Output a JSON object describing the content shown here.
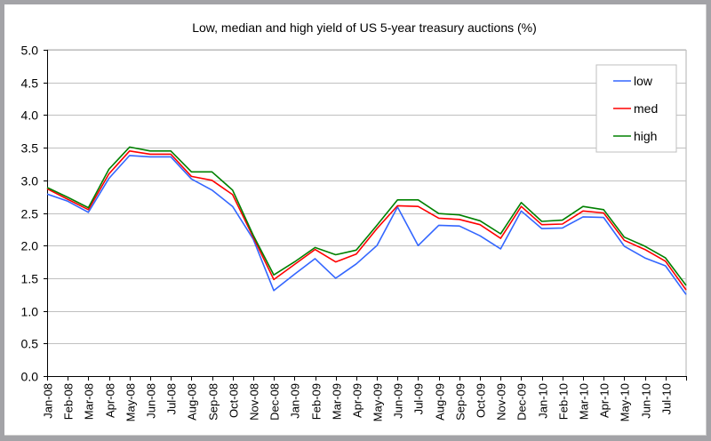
{
  "chart_data": {
    "type": "line",
    "title": "Low, median and high yield of US 5-year treasury auctions (%)",
    "xlabel": "",
    "ylabel": "",
    "ylim": [
      0,
      5
    ],
    "yticks": [
      "0.0",
      "0.5",
      "1.0",
      "1.5",
      "2.0",
      "2.5",
      "3.0",
      "3.5",
      "4.0",
      "4.5",
      "5.0"
    ],
    "ytick_values": [
      0,
      0.5,
      1,
      1.5,
      2,
      2.5,
      3,
      3.5,
      4,
      4.5,
      5
    ],
    "grid": true,
    "legend_position": "top-right",
    "categories": [
      "Jan-08",
      "Feb-08",
      "Mar-08",
      "Apr-08",
      "May-08",
      "Jun-08",
      "Jul-08",
      "Aug-08",
      "Sep-08",
      "Oct-08",
      "Nov-08",
      "Dec-08",
      "Jan-09",
      "Feb-09",
      "Mar-09",
      "Apr-09",
      "May-09",
      "Jun-09",
      "Jul-09",
      "Aug-09",
      "Sep-09",
      "Oct-09",
      "Nov-09",
      "Dec-09",
      "Jan-10",
      "Feb-10",
      "Mar-10",
      "Apr-10",
      "May-10",
      "Jun-10",
      "Jul-10",
      "Aug-10"
    ],
    "category_labels": [
      "Jan-08",
      "Feb-08",
      "Mar-08",
      "Apr-08",
      "May-08",
      "Jun-08",
      "Jul-08",
      "Aug-08",
      "Sep-08",
      "Oct-08",
      "Nov-08",
      "Dec-08",
      "Jan-09",
      "Feb-09",
      "Mar-09",
      "Apr-09",
      "May-09",
      "Jun-09",
      "Jul-09",
      "Aug-09",
      "Sep-09",
      "Oct-09",
      "Nov-09",
      "Dec-09",
      "Jan-10",
      "Feb-10",
      "Mar-10",
      "Apr-10",
      "May-10",
      "Jun-10",
      "Jul-10",
      ""
    ],
    "series": [
      {
        "name": "low",
        "color": "#3366ff",
        "values": [
          2.79,
          2.68,
          2.51,
          3.03,
          3.38,
          3.36,
          3.36,
          3.02,
          2.85,
          2.6,
          2.1,
          1.31,
          1.56,
          1.8,
          1.5,
          1.72,
          2.0,
          2.59,
          2.0,
          2.31,
          2.3,
          2.15,
          1.95,
          2.53,
          2.26,
          2.27,
          2.44,
          2.43,
          1.99,
          1.81,
          1.69,
          1.25
        ]
      },
      {
        "name": "med",
        "color": "#ff0000",
        "values": [
          2.87,
          2.71,
          2.55,
          3.1,
          3.45,
          3.4,
          3.4,
          3.06,
          3.0,
          2.78,
          2.13,
          1.48,
          1.71,
          1.94,
          1.75,
          1.87,
          2.26,
          2.61,
          2.6,
          2.42,
          2.4,
          2.32,
          2.11,
          2.6,
          2.32,
          2.33,
          2.53,
          2.5,
          2.08,
          1.94,
          1.76,
          1.32
        ]
      },
      {
        "name": "high",
        "color": "#008000",
        "values": [
          2.89,
          2.74,
          2.58,
          3.17,
          3.51,
          3.45,
          3.45,
          3.13,
          3.13,
          2.85,
          2.16,
          1.55,
          1.75,
          1.97,
          1.86,
          1.93,
          2.31,
          2.7,
          2.7,
          2.49,
          2.47,
          2.38,
          2.18,
          2.66,
          2.37,
          2.39,
          2.6,
          2.55,
          2.13,
          1.99,
          1.81,
          1.39
        ]
      }
    ]
  }
}
